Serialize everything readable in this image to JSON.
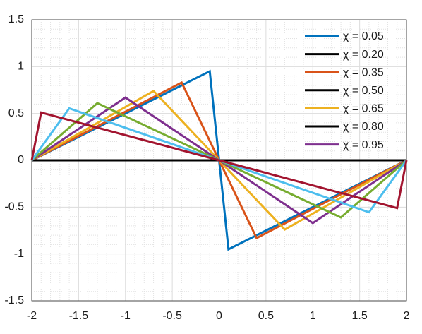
{
  "chart_data": {
    "type": "line",
    "xlim": [
      -2,
      2
    ],
    "xticks": [
      -2,
      -1.5,
      -1,
      -0.5,
      0,
      0.5,
      1,
      1.5,
      2
    ],
    "ylim": [
      -1.5,
      1.5
    ],
    "yticks": [
      -1.5,
      -1,
      -0.5,
      0,
      0.5,
      1,
      1.5
    ],
    "grid": true,
    "minor_grid": true,
    "legend": "top-right",
    "series": [
      {
        "name": "χ = 0.05",
        "color": "#0072bd",
        "x": [
          -2,
          -0.1,
          0,
          0.1,
          2
        ],
        "values": [
          0,
          0.95,
          0,
          -0.95,
          0
        ]
      },
      {
        "name": "χ = 0.20",
        "color": "#000000",
        "x": [
          -2,
          2
        ],
        "values": [
          0,
          0
        ]
      },
      {
        "name": "χ = 0.35",
        "color": "#d95319",
        "x": [
          -2,
          -0.4,
          0,
          0.4,
          2
        ],
        "values": [
          0,
          0.83,
          0,
          -0.83,
          0
        ]
      },
      {
        "name": "χ = 0.50",
        "color": "#000000",
        "x": [
          -2,
          2
        ],
        "values": [
          0,
          0
        ]
      },
      {
        "name": "χ = 0.65",
        "color": "#edb120",
        "x": [
          -2,
          -0.7,
          0,
          0.7,
          2
        ],
        "values": [
          0,
          0.74,
          0,
          -0.74,
          0
        ]
      },
      {
        "name": "χ = 0.80",
        "color": "#000000",
        "x": [
          -2,
          2
        ],
        "values": [
          0,
          0
        ]
      },
      {
        "name": "χ = 0.95",
        "color": "#7e2f8e",
        "x": [
          -2,
          -1,
          0,
          1,
          2
        ],
        "values": [
          0,
          0.67,
          0,
          -0.67,
          0
        ]
      },
      {
        "color": "#77ac30",
        "x": [
          -2,
          -1.3,
          0,
          1.3,
          2
        ],
        "values": [
          0,
          0.61,
          0,
          -0.61,
          0
        ]
      },
      {
        "color": "#4dbeee",
        "x": [
          -2,
          -1.6,
          0,
          1.6,
          2
        ],
        "values": [
          0,
          0.555,
          0,
          -0.555,
          0
        ]
      },
      {
        "color": "#a2142f",
        "x": [
          -2,
          -1.9,
          0,
          1.9,
          2
        ],
        "values": [
          0,
          0.51,
          0,
          -0.51,
          0
        ]
      }
    ]
  }
}
